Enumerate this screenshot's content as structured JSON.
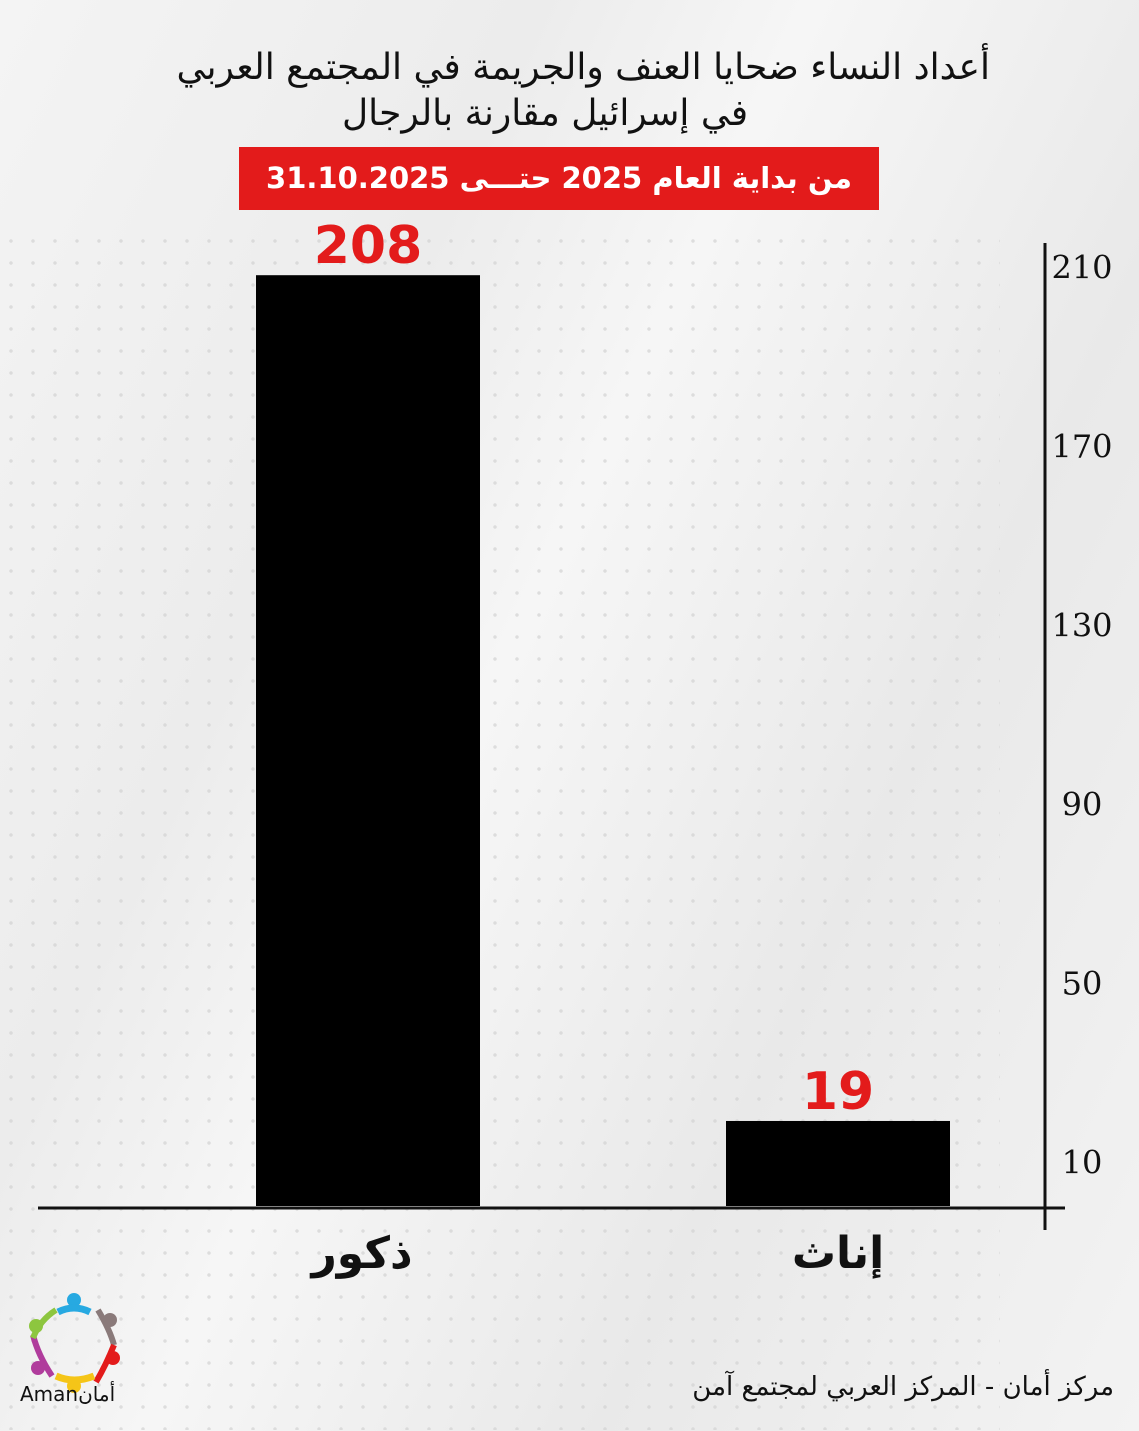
{
  "title_line1": "أعداد النساء ضحايا العنف والجريمة في المجتمع العربي",
  "title_line2": "في إسرائيل مقارنة بالرجال",
  "banner": "من بداية العام 2025 حتـــى 31.10.2025",
  "footer": "مركز أمان  -  المركز العربي لمجتمع آمن",
  "logo_text": "Amanأمان",
  "colors": {
    "bar": "#000000",
    "value_label": "#e31b1b",
    "banner": "#e31b1b"
  },
  "chart_data": {
    "type": "bar",
    "categories": [
      "ذكور",
      "إناث"
    ],
    "values": [
      208,
      19
    ],
    "value_labels": [
      "208",
      "19"
    ],
    "y_ticks": [
      10,
      50,
      90,
      130,
      170,
      210
    ],
    "ylim": [
      0,
      215
    ],
    "y_axis_position": "right",
    "grid": false
  }
}
